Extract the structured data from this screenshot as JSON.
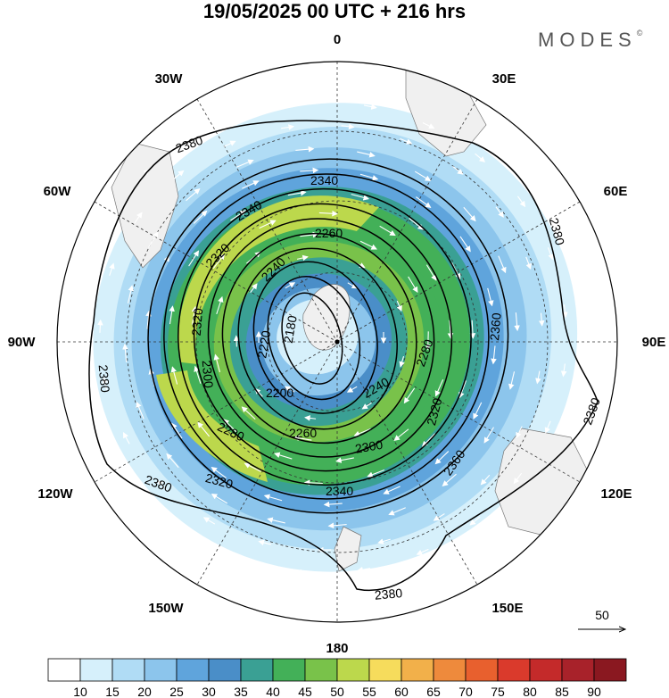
{
  "title": "19/05/2025  00 UTC  + 216 hrs",
  "brand": {
    "name": "MODES",
    "mark": "©"
  },
  "longitude_labels": [
    {
      "text": "0",
      "lon": 0
    },
    {
      "text": "30E",
      "lon": 30
    },
    {
      "text": "60E",
      "lon": 60
    },
    {
      "text": "90E",
      "lon": 90
    },
    {
      "text": "120E",
      "lon": 120
    },
    {
      "text": "150E",
      "lon": 150
    },
    {
      "text": "180",
      "lon": 180
    },
    {
      "text": "150W",
      "lon": 210
    },
    {
      "text": "120W",
      "lon": 240
    },
    {
      "text": "90W",
      "lon": 270
    },
    {
      "text": "60W",
      "lon": 300
    },
    {
      "text": "30W",
      "lon": 330
    }
  ],
  "contours": {
    "color": "#000000",
    "levels": [
      {
        "value": "2180"
      },
      {
        "value": "2200"
      },
      {
        "value": "2220"
      },
      {
        "value": "2240"
      },
      {
        "value": "2260"
      },
      {
        "value": "2280"
      },
      {
        "value": "2300"
      },
      {
        "value": "2320"
      },
      {
        "value": "2340"
      },
      {
        "value": "2360"
      },
      {
        "value": "2380"
      }
    ]
  },
  "reference_vector": {
    "label": "50"
  },
  "colorbar": {
    "labels": [
      "10",
      "15",
      "20",
      "25",
      "30",
      "35",
      "40",
      "45",
      "50",
      "55",
      "60",
      "65",
      "70",
      "75",
      "80",
      "85",
      "90"
    ],
    "colors": [
      "#ffffff",
      "#d6f0fb",
      "#b0dcf5",
      "#8cc5ec",
      "#5fa4dc",
      "#4a8ec8",
      "#3aa094",
      "#43b058",
      "#79c24a",
      "#bcd84c",
      "#f6dc5c",
      "#f2b04a",
      "#ee8a3c",
      "#e8602e",
      "#da3a2c",
      "#c42a2a",
      "#a8222a",
      "#8a1820"
    ]
  }
}
